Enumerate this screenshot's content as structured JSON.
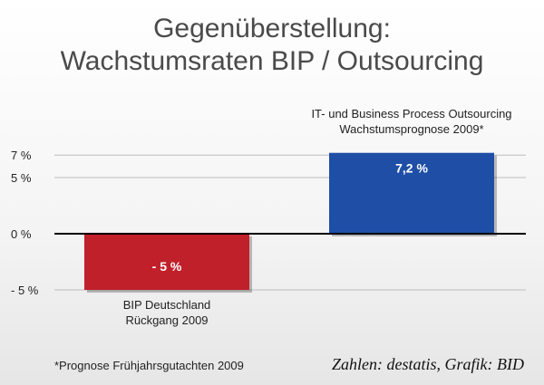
{
  "title_line1": "Gegenüberstellung:",
  "title_line2": "Wachstumsraten BIP / Outsourcing",
  "footnote": "*Prognose Frühjahrsgutachten 2009",
  "credit": "Zahlen: destatis, Grafik: BID",
  "colors": {
    "negative": "#c0202a",
    "positive": "#1f4ea6",
    "title": "#4a4a4a"
  },
  "chart_data": {
    "type": "bar",
    "title": "Gegenüberstellung: Wachstumsraten BIP / Outsourcing",
    "ylim": [
      -5,
      7
    ],
    "yticks": [
      "7 %",
      "5 %",
      "0 %",
      "- 5 %"
    ],
    "ytick_values": [
      7,
      5,
      0,
      -5
    ],
    "categories": [
      [
        "BIP Deutschland",
        "Rückgang 2009"
      ],
      [
        "IT- und Business Process Outsourcing",
        "Wachstumsprognose 2009*"
      ]
    ],
    "values": [
      -5,
      7.2
    ],
    "value_labels": [
      "- 5 %",
      "7,2 %"
    ],
    "grid": true,
    "legend": "none"
  }
}
